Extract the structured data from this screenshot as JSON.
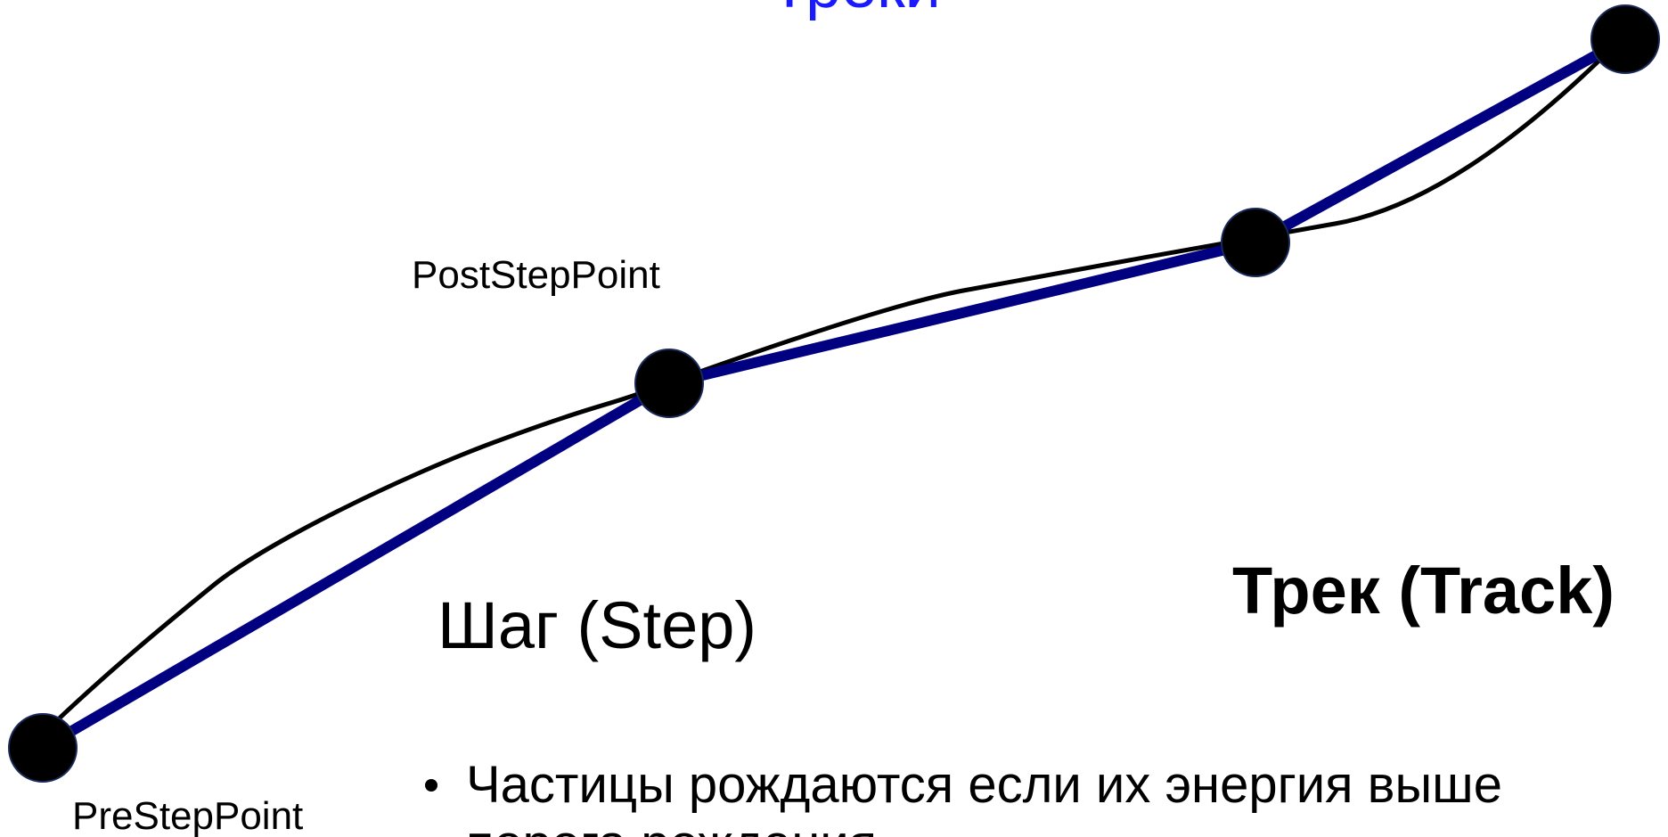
{
  "title": "Треки",
  "labels": {
    "post_step": "PostStepPoint",
    "pre_step": "PreStepPoint",
    "step": "Шаг (Step)",
    "track": "Трек (Track)"
  },
  "bullets": [
    "Частицы рождаются если их энергия выше",
    "порога рождения"
  ]
}
